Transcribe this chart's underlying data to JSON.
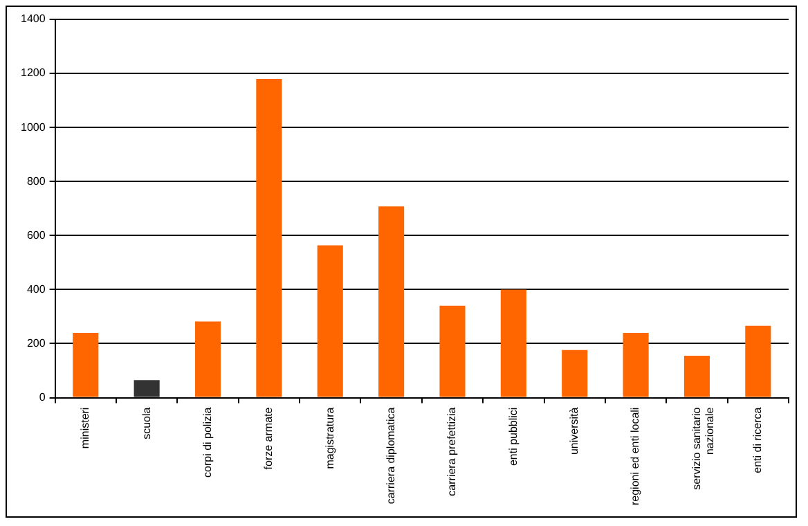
{
  "chart_data": {
    "type": "bar",
    "categories": [
      "ministeri",
      "scuola",
      "corpi di polizia",
      "forze armate",
      "magistratura",
      "carriera diplomatica",
      "carriera prefettizia",
      "enti pubblici",
      "università",
      "regioni ed enti locali",
      "servizio sanitario\nnazionale",
      "enti di ricerca"
    ],
    "values": [
      240,
      65,
      282,
      1180,
      564,
      708,
      340,
      400,
      176,
      240,
      155,
      266
    ],
    "colors": [
      "#ff6600",
      "#333333",
      "#ff6600",
      "#ff6600",
      "#ff6600",
      "#ff6600",
      "#ff6600",
      "#ff6600",
      "#ff6600",
      "#ff6600",
      "#ff6600",
      "#ff6600"
    ],
    "ylim": [
      0,
      1400
    ],
    "yticks": [
      0,
      200,
      400,
      600,
      800,
      1000,
      1200,
      1400
    ],
    "grid": "y",
    "legend": false
  }
}
